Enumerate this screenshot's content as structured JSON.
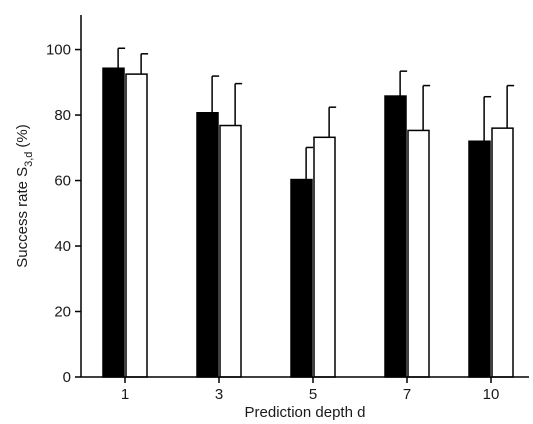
{
  "chart_data": {
    "type": "bar",
    "title": "",
    "xlabel": "Prediction depth d",
    "ylabel_main": "Success rate S",
    "ylabel_sub": "3,d",
    "ylabel_unit": "(%)",
    "categories": [
      "1",
      "3",
      "5",
      "7",
      "10"
    ],
    "series": [
      {
        "values": [
          94.3,
          80.7,
          60.3,
          85.8,
          72.0
        ],
        "errors": [
          6.1,
          11.2,
          9.8,
          7.6,
          13.6
        ],
        "color": "#000000"
      },
      {
        "values": [
          92.5,
          76.8,
          73.2,
          75.3,
          76.0
        ],
        "errors": [
          6.2,
          12.8,
          9.2,
          13.7,
          13.0
        ],
        "color": "#ffffff"
      }
    ],
    "ylim": [
      0,
      110
    ],
    "yticks": [
      0,
      20,
      40,
      60,
      80,
      100
    ],
    "grid": false,
    "legend": "none"
  }
}
